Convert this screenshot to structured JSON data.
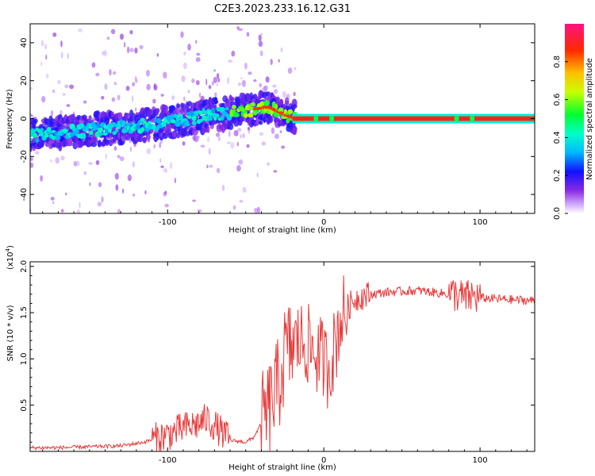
{
  "chart_data": [
    {
      "type": "heatmap",
      "title": "C2E3.2023.233.16.12.G31",
      "xlabel": "Height of straight line (km)",
      "ylabel": "Frequency (Hz)",
      "xlim": [
        -188,
        135
      ],
      "ylim": [
        -50,
        50
      ],
      "xticks": [
        -100,
        0,
        100
      ],
      "yticks": [
        -40,
        -20,
        0,
        20,
        40
      ],
      "xtick_labels": [
        "-100",
        "0",
        "100"
      ],
      "ytick_labels": [
        "-40",
        "-20",
        "0",
        "20",
        "40"
      ],
      "ridge": {
        "x": [
          -188,
          -150,
          -120,
          -100,
          -80,
          -60,
          -45,
          -35,
          -30,
          -25,
          -20,
          0,
          50,
          100,
          135
        ],
        "y": [
          -9,
          -6,
          -4,
          -2,
          1,
          3,
          5,
          6,
          4,
          2,
          0.5,
          0,
          0,
          0,
          0
        ]
      },
      "colorbar": {
        "label": "Normalized spectral amplitude",
        "range": [
          0,
          1
        ],
        "ticks": [
          0.0,
          0.2,
          0.4,
          0.6,
          0.8
        ],
        "tick_labels": [
          "0.0",
          "0.2",
          "0.4",
          "0.6",
          "0.8"
        ]
      }
    },
    {
      "type": "line",
      "xlabel": "Height of straight line (km)",
      "ylabel": "SNR (10 * v/v)",
      "yscale_label": "(x10",
      "yscale_exp": "4",
      "yscale_close": ")",
      "xlim": [
        -188,
        135
      ],
      "ylim": [
        0,
        2.05
      ],
      "xticks": [
        -100,
        0,
        100
      ],
      "yticks": [
        0.5,
        1.0,
        1.5,
        2.0
      ],
      "xtick_labels": [
        "-100",
        "0",
        "100"
      ],
      "ytick_labels": [
        "0.5",
        "1.0",
        "1.5",
        "2.0"
      ],
      "series": [
        {
          "name": "SNR",
          "color": "#e83a3a",
          "x": [
            -188,
            -170,
            -150,
            -130,
            -115,
            -100,
            -90,
            -80,
            -75,
            -70,
            -60,
            -50,
            -45,
            -40,
            -35,
            -32,
            -30,
            -28,
            -25,
            -22,
            -20,
            -15,
            -10,
            -5,
            0,
            2,
            5,
            8,
            10,
            15,
            20,
            25,
            30,
            40,
            50,
            60,
            70,
            80,
            85,
            90,
            95,
            100,
            110,
            120,
            135
          ],
          "y": [
            0.04,
            0.04,
            0.05,
            0.06,
            0.1,
            0.18,
            0.25,
            0.3,
            0.35,
            0.28,
            0.12,
            0.1,
            0.15,
            0.3,
            0.45,
            0.6,
            0.65,
            0.8,
            1.05,
            1.1,
            1.15,
            1.2,
            1.15,
            1.05,
            1.0,
            0.9,
            1.0,
            1.2,
            1.4,
            1.55,
            1.65,
            1.68,
            1.7,
            1.72,
            1.73,
            1.74,
            1.72,
            1.7,
            1.7,
            1.65,
            1.68,
            1.66,
            1.65,
            1.64,
            1.63
          ]
        }
      ]
    }
  ]
}
